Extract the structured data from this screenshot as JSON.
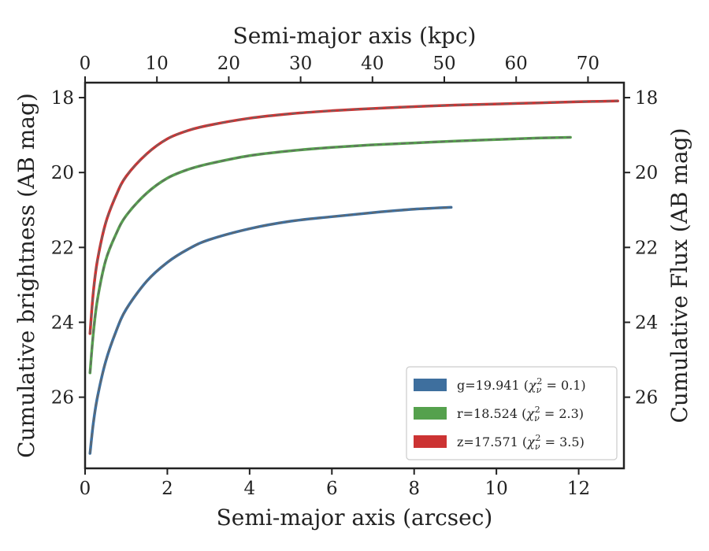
{
  "chart_data": {
    "type": "line",
    "xlabel": "Semi-major axis (arcsec)",
    "ylabel": "Cumulative brightness (AB mag)",
    "x2label": "Semi-major axis (kpc)",
    "y2label": "Cumulative Flux (AB mag)",
    "xlim": [
      0,
      13.1
    ],
    "ylim": [
      27.9,
      17.6
    ],
    "x2lim": [
      0,
      75
    ],
    "y_inverted": true,
    "xticks": [
      "0",
      "2",
      "4",
      "6",
      "8",
      "10",
      "12"
    ],
    "yticks": [
      "18",
      "20",
      "22",
      "24",
      "26"
    ],
    "x2ticks": [
      "0",
      "10",
      "20",
      "30",
      "40",
      "50",
      "60",
      "70"
    ],
    "y2ticks": [
      "18",
      "20",
      "22",
      "24",
      "26"
    ],
    "grid": false,
    "legend_position": "bottom-right",
    "series": [
      {
        "name": "g=19.941 (χ_ν² = 0.1)",
        "legend_main": "g=19.941 (",
        "legend_chi": "χ",
        "legend_nu": "ν",
        "legend_sq": "2",
        "legend_val": " = 0.1)",
        "color": "#3e6f9e",
        "x": [
          0.12,
          0.2,
          0.3,
          0.5,
          0.75,
          1.0,
          1.5,
          2.0,
          2.5,
          3.0,
          4.0,
          5.0,
          6.0,
          7.0,
          8.0,
          8.9
        ],
        "y": [
          27.5,
          26.7,
          26.0,
          25.05,
          24.25,
          23.65,
          22.9,
          22.4,
          22.05,
          21.8,
          21.5,
          21.3,
          21.18,
          21.07,
          20.98,
          20.93
        ]
      },
      {
        "name": "r=18.524 (χ_ν² = 2.3)",
        "legend_main": "r=18.524 (",
        "legend_chi": "χ",
        "legend_nu": "ν",
        "legend_sq": "2",
        "legend_val": " = 2.3)",
        "color": "#55a14d",
        "x": [
          0.12,
          0.2,
          0.3,
          0.5,
          0.75,
          1.0,
          1.5,
          2.0,
          2.5,
          3.0,
          4.0,
          5.0,
          6.0,
          7.0,
          8.0,
          9.0,
          10.0,
          11.0,
          11.8
        ],
        "y": [
          25.35,
          24.3,
          23.4,
          22.35,
          21.65,
          21.15,
          20.55,
          20.15,
          19.92,
          19.77,
          19.55,
          19.42,
          19.33,
          19.26,
          19.21,
          19.16,
          19.12,
          19.08,
          19.06
        ]
      },
      {
        "name": "z=17.571 (χ_ν² = 3.5)",
        "legend_main": "z=17.571 (",
        "legend_chi": "χ",
        "legend_nu": "ν",
        "legend_sq": "2",
        "legend_val": " = 3.5)",
        "color": "#cc3333",
        "x": [
          0.12,
          0.2,
          0.3,
          0.5,
          0.75,
          1.0,
          1.5,
          2.0,
          2.5,
          3.0,
          4.0,
          5.0,
          6.0,
          7.0,
          8.0,
          9.0,
          10.0,
          11.0,
          12.0,
          12.95
        ],
        "y": [
          24.3,
          23.2,
          22.35,
          21.35,
          20.62,
          20.1,
          19.5,
          19.1,
          18.88,
          18.74,
          18.55,
          18.43,
          18.35,
          18.29,
          18.24,
          18.2,
          18.17,
          18.14,
          18.11,
          18.09
        ]
      }
    ]
  }
}
